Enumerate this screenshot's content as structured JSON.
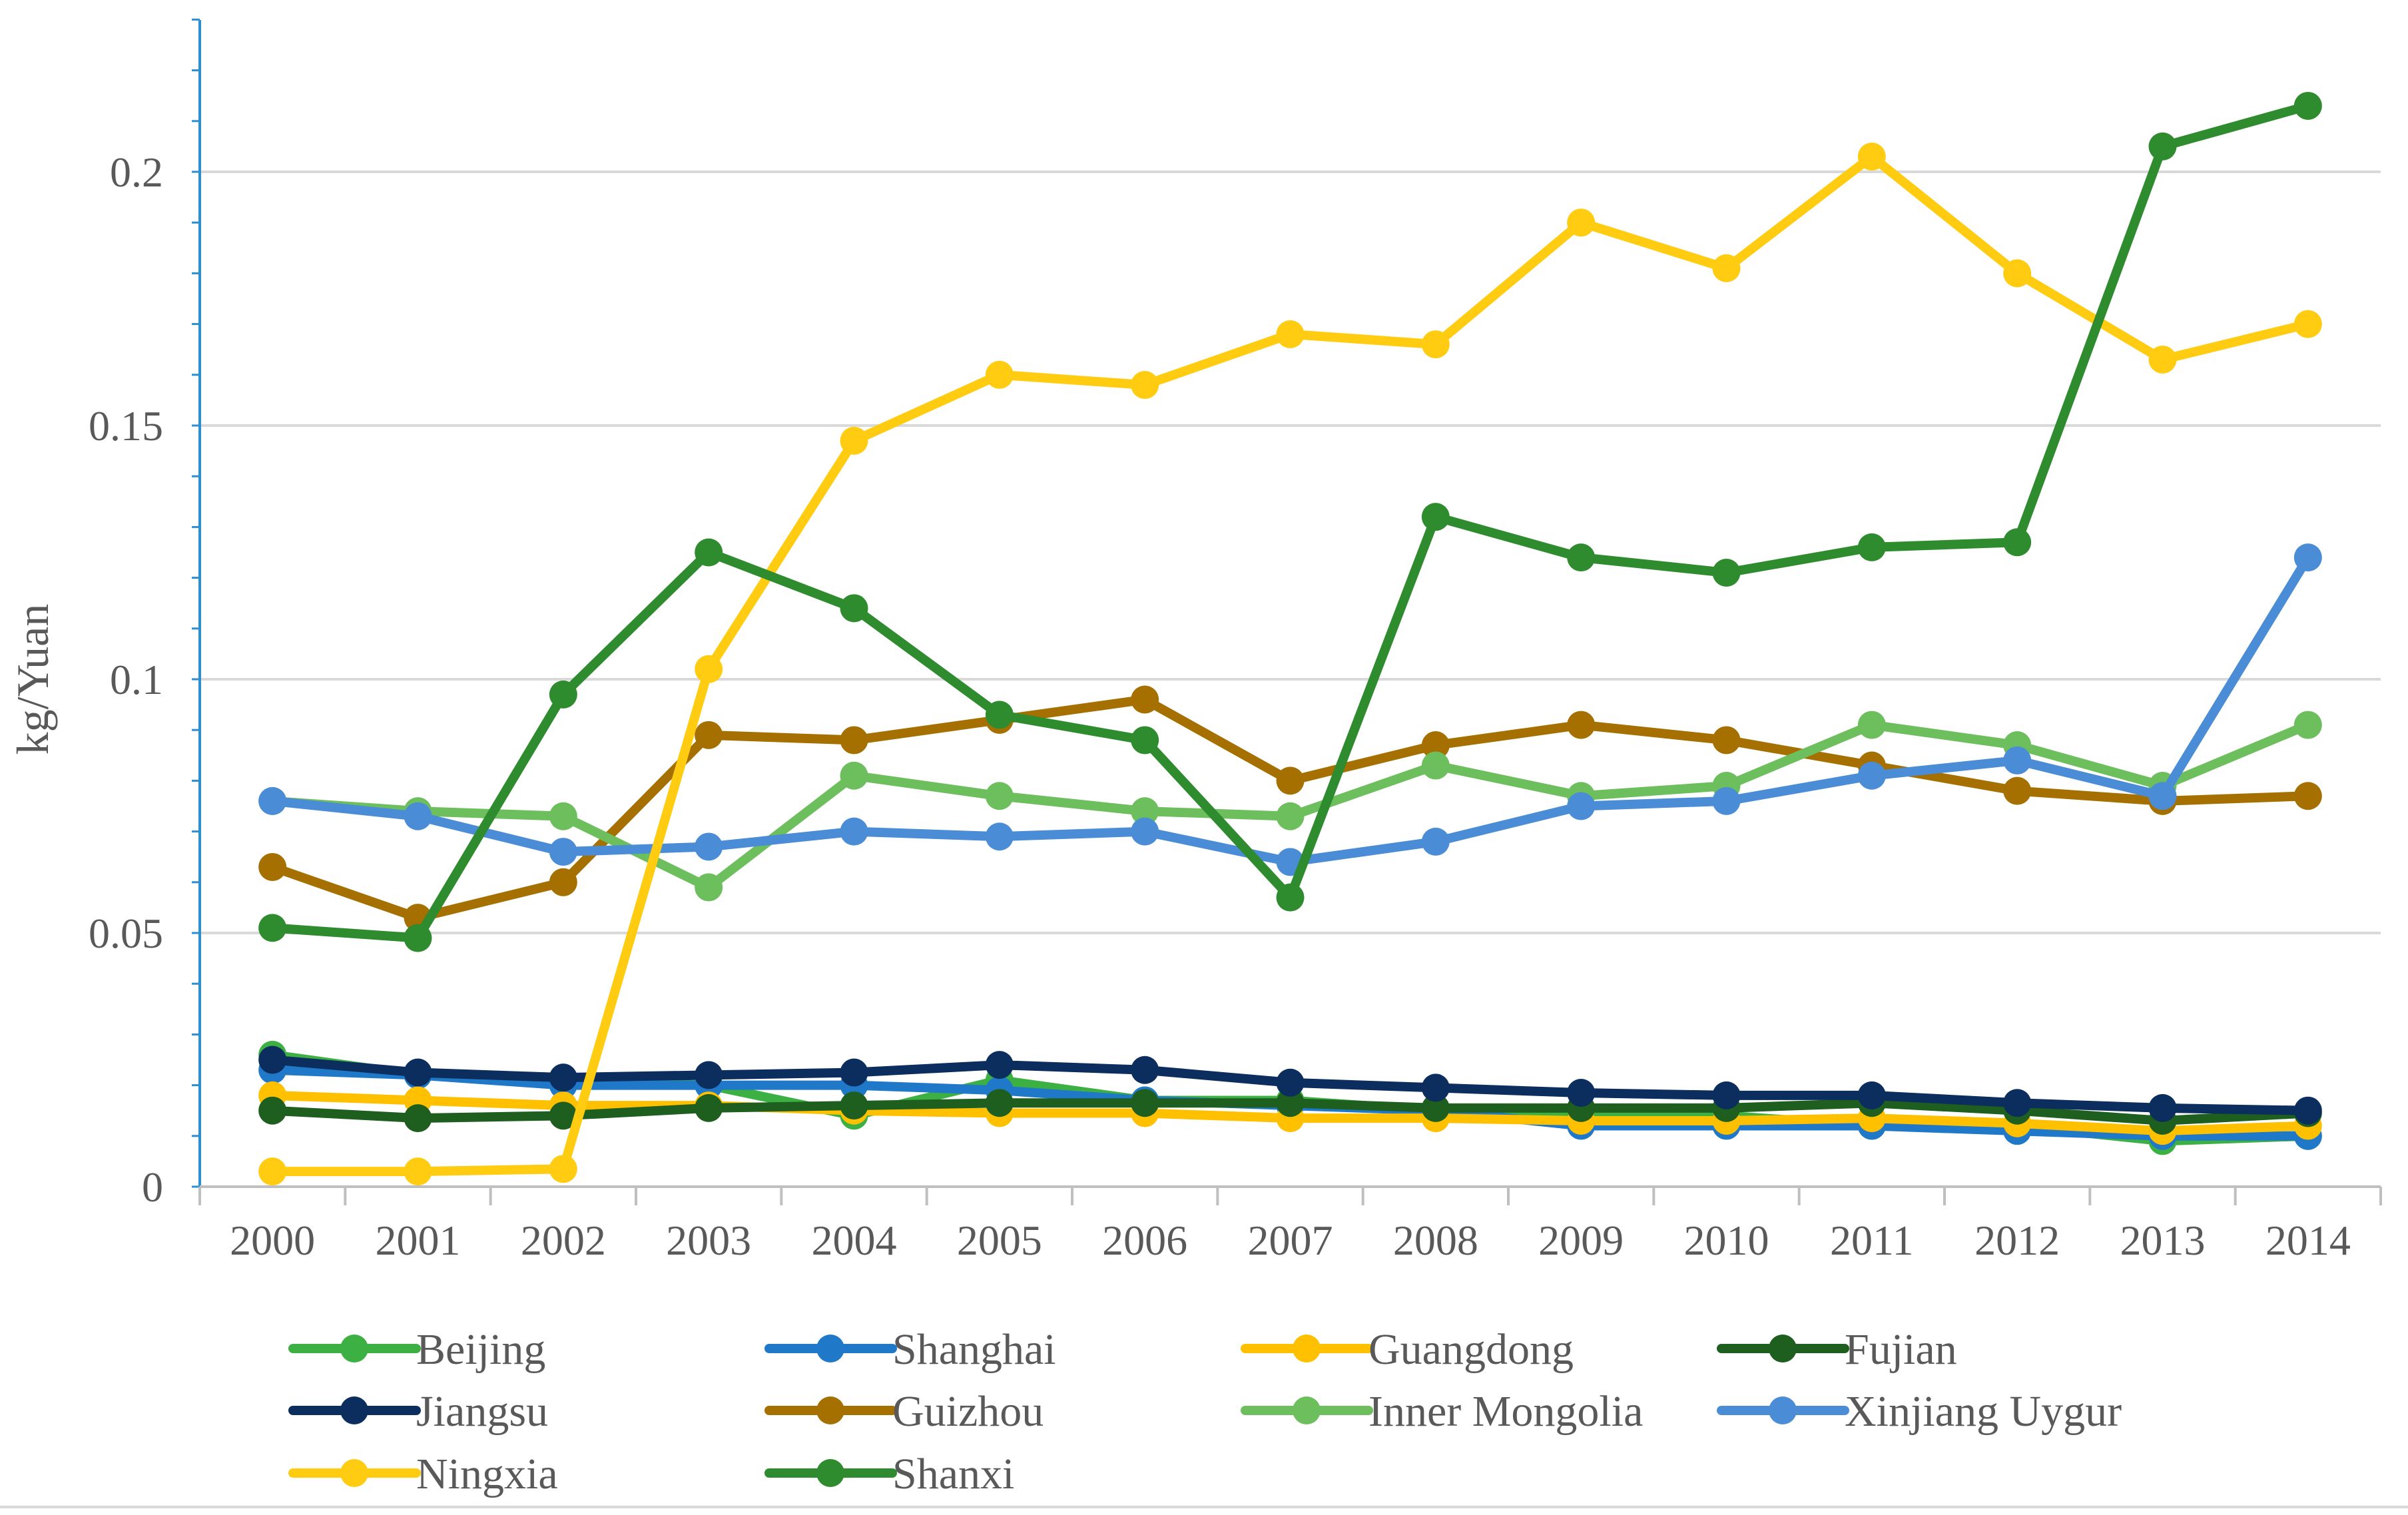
{
  "chart_data": {
    "type": "line",
    "title": "",
    "xlabel": "",
    "ylabel": "kg/Yuan",
    "ylim": [
      0,
      0.23
    ],
    "yticks": [
      0,
      0.05,
      0.1,
      0.15,
      0.2
    ],
    "ytick_labels": [
      "0",
      "0.05",
      "0.1",
      "0.15",
      "0.2"
    ],
    "grid": true,
    "legend_position": "bottom",
    "categories": [
      "2000",
      "2001",
      "2002",
      "2003",
      "2004",
      "2005",
      "2006",
      "2007",
      "2008",
      "2009",
      "2010",
      "2011",
      "2012",
      "2013",
      "2014"
    ],
    "series": [
      {
        "name": "Beijing",
        "color": "#3cb043",
        "values": [
          0.026,
          0.022,
          0.021,
          0.02,
          0.014,
          0.021,
          0.017,
          0.017,
          0.015,
          0.014,
          0.014,
          0.012,
          0.012,
          0.009,
          0.01
        ]
      },
      {
        "name": "Shanghai",
        "color": "#1f78c8",
        "values": [
          0.023,
          0.022,
          0.02,
          0.02,
          0.02,
          0.019,
          0.017,
          0.016,
          0.015,
          0.012,
          0.012,
          0.012,
          0.011,
          0.01,
          0.01
        ]
      },
      {
        "name": "Guangdong",
        "color": "#ffc000",
        "values": [
          0.018,
          0.017,
          0.016,
          0.016,
          0.015,
          0.0145,
          0.0145,
          0.0135,
          0.0135,
          0.013,
          0.013,
          0.0135,
          0.0125,
          0.011,
          0.012
        ]
      },
      {
        "name": "Fujian",
        "color": "#1e5e1e",
        "values": [
          0.015,
          0.0135,
          0.014,
          0.0155,
          0.016,
          0.0165,
          0.0165,
          0.0165,
          0.0155,
          0.0155,
          0.0155,
          0.0165,
          0.015,
          0.013,
          0.0145
        ]
      },
      {
        "name": "Jiangsu",
        "color": "#0b2e5e",
        "values": [
          0.025,
          0.0225,
          0.0215,
          0.022,
          0.0225,
          0.024,
          0.023,
          0.0205,
          0.0195,
          0.0185,
          0.018,
          0.018,
          0.0165,
          0.0155,
          0.015
        ]
      },
      {
        "name": "Guizhou",
        "color": "#a57000",
        "values": [
          0.063,
          0.053,
          0.06,
          0.089,
          0.088,
          0.092,
          0.096,
          0.08,
          0.087,
          0.091,
          0.088,
          0.083,
          0.078,
          0.076,
          0.077
        ]
      },
      {
        "name": "Inner Mongolia",
        "color": "#6cbf5c",
        "values": [
          0.076,
          0.074,
          0.073,
          0.059,
          0.081,
          0.077,
          0.074,
          0.073,
          0.083,
          0.077,
          0.079,
          0.091,
          0.087,
          0.079,
          0.091
        ]
      },
      {
        "name": "Xinjiang Uygur",
        "color": "#4a8cd6",
        "values": [
          0.076,
          0.073,
          0.066,
          0.067,
          0.07,
          0.069,
          0.07,
          0.064,
          0.068,
          0.075,
          0.076,
          0.081,
          0.084,
          0.077,
          0.124
        ]
      },
      {
        "name": "Ningxia",
        "color": "#ffcc12",
        "values": [
          0.003,
          0.003,
          0.0035,
          0.102,
          0.147,
          0.16,
          0.158,
          0.168,
          0.166,
          0.19,
          0.181,
          0.203,
          0.18,
          0.163,
          0.17
        ]
      },
      {
        "name": "Shanxi",
        "color": "#2e8b2e",
        "values": [
          0.051,
          0.049,
          0.097,
          0.125,
          0.114,
          0.093,
          0.088,
          0.057,
          0.132,
          0.124,
          0.121,
          0.126,
          0.127,
          0.205,
          0.213
        ]
      }
    ]
  }
}
